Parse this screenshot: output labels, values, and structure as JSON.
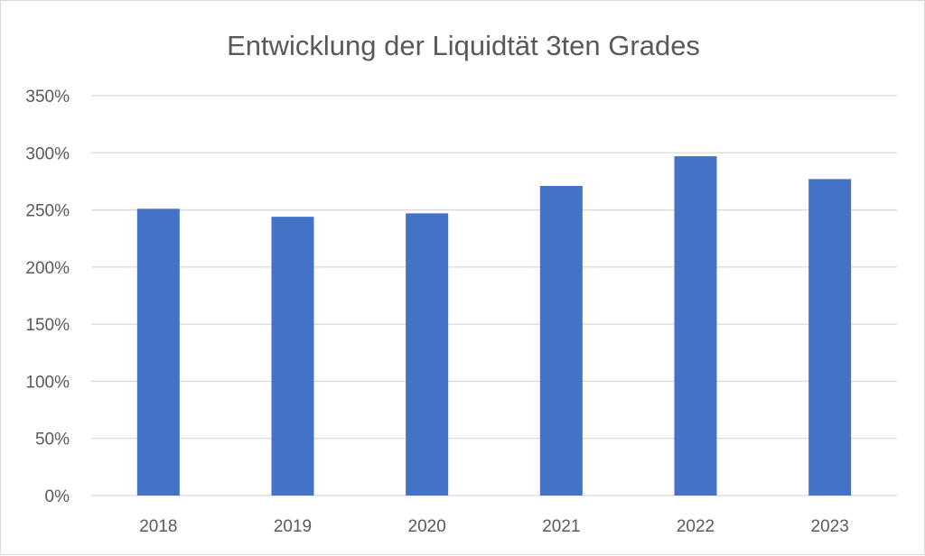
{
  "chart_data": {
    "type": "bar",
    "title": "Entwicklung der Liquidtät 3ten Grades",
    "xlabel": "",
    "ylabel": "",
    "categories": [
      "2018",
      "2019",
      "2020",
      "2021",
      "2022",
      "2023"
    ],
    "series": [
      {
        "values": [
          251,
          244,
          247,
          271,
          297,
          277
        ],
        "color": "#4472c4"
      }
    ],
    "value_unit": "percent",
    "ylim": [
      0,
      350
    ],
    "yticks": [
      0,
      50,
      100,
      150,
      200,
      250,
      300,
      350
    ],
    "ytick_labels": [
      "0%",
      "50%",
      "100%",
      "150%",
      "200%",
      "250%",
      "300%",
      "350%"
    ],
    "grid": true,
    "legend": "none",
    "gridline_color": "#d9d9d9"
  }
}
